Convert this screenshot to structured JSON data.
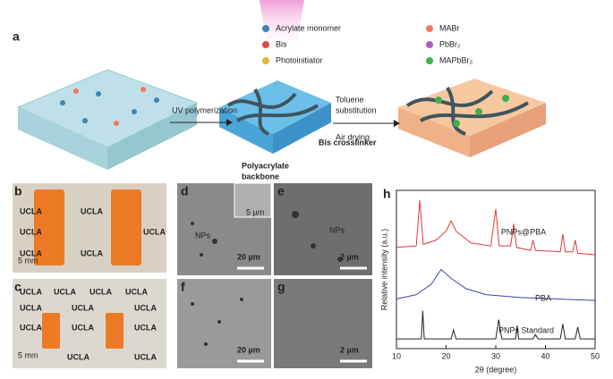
{
  "panel_labels": [
    "a",
    "b",
    "c",
    "d",
    "e",
    "f",
    "g",
    "h"
  ],
  "schematic": {
    "legend": [
      {
        "label": "Acrylate monomer",
        "color": "#3a86b8"
      },
      {
        "label": "MABr",
        "color": "#f07a5a"
      },
      {
        "label": "Bis",
        "color": "#e04848"
      },
      {
        "label": "PbBr₂",
        "color": "#b45cc4"
      },
      {
        "label": "Photoinitiator",
        "color": "#e2b43a"
      },
      {
        "label": "MAPbBr₃",
        "color": "#3fb04a"
      }
    ],
    "steps": [
      "UV polymerization",
      "Toluene",
      "substitution",
      "Air drying"
    ],
    "backbone_label": [
      "Polyacrylate",
      "backbone"
    ],
    "crosslinker_label": "Bis crosslinker"
  },
  "photos": {
    "background_text": "UCLA",
    "scale_bar_b": "5 mm",
    "scale_bar_c": "5 mm"
  },
  "sem": {
    "d": {
      "scale": "20 µm",
      "inset_scale": "5 µm",
      "feature": "NPs"
    },
    "e": {
      "scale": "2 µm",
      "feature": "NPs"
    },
    "f": {
      "scale": "20 µm"
    },
    "g": {
      "scale": "2 µm"
    }
  },
  "chart_data": {
    "type": "line",
    "xlabel": "2θ (degree)",
    "ylabel": "Relative intensity (a.u.)",
    "xlim": [
      10,
      50
    ],
    "xticks": [
      10,
      20,
      30,
      40,
      50
    ],
    "ylim": [
      0,
      100
    ],
    "series": [
      {
        "name": "PNPs@PBA",
        "color": "#e03a3a",
        "x": [
          10,
          14,
          14.7,
          15.4,
          18,
          20,
          21,
          22,
          25,
          29,
          30,
          30.7,
          33,
          33.6,
          34.2,
          37,
          37.5,
          38,
          43,
          43.5,
          44,
          45.5,
          46,
          46.5,
          50
        ],
        "values": [
          65,
          66,
          97,
          67,
          70,
          76,
          83,
          76,
          68,
          66,
          91,
          66,
          66,
          81,
          65,
          63,
          70,
          63,
          62,
          74,
          62,
          62,
          70,
          61,
          60
        ]
      },
      {
        "name": "PBA",
        "color": "#3a44a8",
        "x": [
          10,
          14,
          17,
          19,
          21,
          24,
          28,
          35,
          50
        ],
        "values": [
          30,
          33,
          40,
          50,
          44,
          37,
          33,
          31,
          29
        ]
      },
      {
        "name": "PNPs Standard",
        "color": "#222222",
        "x": [
          10,
          15,
          15.3,
          15.6,
          21,
          21.5,
          22,
          30,
          30.6,
          31.2,
          34,
          34.3,
          34.6,
          37.5,
          38,
          38.5,
          43,
          43.5,
          44,
          46,
          46.5,
          47,
          50
        ],
        "values": [
          3,
          3,
          22,
          3,
          3,
          9,
          3,
          3,
          16,
          3,
          3,
          12,
          3,
          3,
          6,
          3,
          3,
          13,
          3,
          3,
          11,
          3,
          3
        ]
      }
    ]
  }
}
